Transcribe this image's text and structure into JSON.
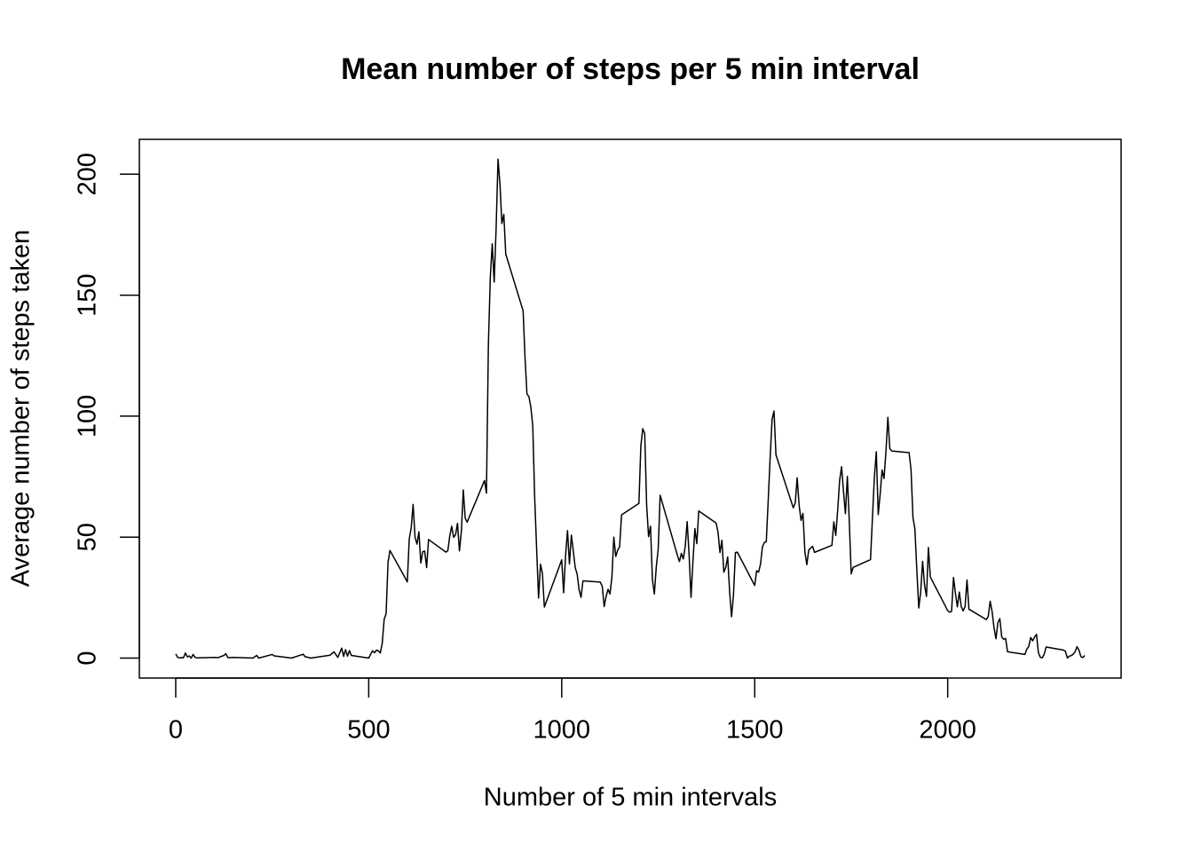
{
  "chart_data": {
    "type": "line",
    "title": "Mean number of steps per 5 min interval",
    "xlabel": "Number of 5 min intervals",
    "ylabel": "Average number of steps taken",
    "color": "#000000",
    "xlim": [
      -94.2,
      2449.2
    ],
    "ylim": [
      -8.25,
      214.4
    ],
    "xticks": [
      0,
      500,
      1000,
      1500,
      2000
    ],
    "yticks": [
      0,
      50,
      100,
      150,
      200
    ],
    "x": [
      0,
      5,
      10,
      15,
      20,
      25,
      30,
      35,
      40,
      45,
      50,
      55,
      100,
      110,
      125,
      130,
      135,
      150,
      200,
      210,
      215,
      250,
      255,
      300,
      330,
      335,
      350,
      400,
      410,
      420,
      430,
      435,
      440,
      445,
      450,
      455,
      500,
      505,
      510,
      515,
      520,
      525,
      530,
      535,
      540,
      545,
      550,
      555,
      600,
      605,
      610,
      615,
      620,
      625,
      630,
      635,
      640,
      645,
      650,
      655,
      700,
      705,
      710,
      715,
      720,
      725,
      730,
      735,
      740,
      745,
      750,
      755,
      800,
      805,
      810,
      815,
      820,
      825,
      830,
      835,
      840,
      845,
      850,
      855,
      900,
      905,
      910,
      915,
      920,
      925,
      930,
      935,
      940,
      945,
      950,
      955,
      1000,
      1005,
      1010,
      1015,
      1020,
      1025,
      1030,
      1035,
      1040,
      1045,
      1050,
      1055,
      1100,
      1105,
      1110,
      1115,
      1120,
      1125,
      1130,
      1135,
      1140,
      1145,
      1150,
      1155,
      1200,
      1205,
      1210,
      1215,
      1220,
      1225,
      1230,
      1235,
      1240,
      1245,
      1250,
      1255,
      1300,
      1305,
      1310,
      1315,
      1320,
      1325,
      1330,
      1335,
      1340,
      1345,
      1350,
      1355,
      1400,
      1405,
      1410,
      1415,
      1420,
      1425,
      1430,
      1435,
      1440,
      1445,
      1450,
      1455,
      1500,
      1505,
      1510,
      1515,
      1520,
      1525,
      1530,
      1535,
      1540,
      1545,
      1550,
      1555,
      1600,
      1605,
      1610,
      1615,
      1620,
      1625,
      1630,
      1635,
      1640,
      1645,
      1650,
      1655,
      1700,
      1705,
      1710,
      1715,
      1720,
      1725,
      1730,
      1735,
      1740,
      1745,
      1750,
      1755,
      1800,
      1805,
      1810,
      1815,
      1820,
      1825,
      1830,
      1835,
      1840,
      1845,
      1850,
      1855,
      1900,
      1905,
      1910,
      1915,
      1920,
      1925,
      1930,
      1935,
      1940,
      1945,
      1950,
      1955,
      2000,
      2005,
      2010,
      2015,
      2020,
      2025,
      2030,
      2035,
      2040,
      2045,
      2050,
      2055,
      2100,
      2105,
      2110,
      2115,
      2120,
      2125,
      2130,
      2135,
      2140,
      2145,
      2150,
      2155,
      2200,
      2205,
      2210,
      2215,
      2220,
      2225,
      2230,
      2235,
      2240,
      2245,
      2250,
      2255,
      2300,
      2305,
      2310,
      2315,
      2320,
      2325,
      2330,
      2335,
      2340,
      2345,
      2350,
      2355
    ],
    "values": [
      1.7,
      0.3,
      0.1,
      0.2,
      0.1,
      2.1,
      0.5,
      0.9,
      0,
      1.5,
      0.3,
      0.1,
      0.3,
      0.2,
      1.1,
      1.8,
      0.2,
      0.3,
      0,
      1.1,
      0,
      1.5,
      0.9,
      0,
      1.6,
      0.6,
      0,
      1.2,
      2.6,
      0.3,
      4.1,
      0.7,
      3.5,
      0.8,
      3.1,
      1.1,
      0,
      1.6,
      3.0,
      2.2,
      3.3,
      3.0,
      2.1,
      6.1,
      16.0,
      18.3,
      39.5,
      44.5,
      31.5,
      49.3,
      53.8,
      63.5,
      50.0,
      47.1,
      52.2,
      39.3,
      44.0,
      44.2,
      37.4,
      49.0,
      43.8,
      44.4,
      50.5,
      54.5,
      49.9,
      51.0,
      55.7,
      44.3,
      52.3,
      69.5,
      57.8,
      56.2,
      73.4,
      68.2,
      129.4,
      157.5,
      171.2,
      155.4,
      177.3,
      206.2,
      195.9,
      179.6,
      183.4,
      167.0,
      143.5,
      124.0,
      109.1,
      108.1,
      103.7,
      96.0,
      66.2,
      45.2,
      24.8,
      38.8,
      35.0,
      21.1,
      40.6,
      27.0,
      42.4,
      52.7,
      38.9,
      50.8,
      44.3,
      37.4,
      34.7,
      28.3,
      25.1,
      31.9,
      31.4,
      29.7,
      21.3,
      25.5,
      28.4,
      26.5,
      33.4,
      50.0,
      42.0,
      44.6,
      46.0,
      59.2,
      63.9,
      87.7,
      94.8,
      92.8,
      63.4,
      50.2,
      54.5,
      32.4,
      26.5,
      37.7,
      45.1,
      67.3,
      42.3,
      39.9,
      43.3,
      41.0,
      46.2,
      56.4,
      42.8,
      25.1,
      40.0,
      53.5,
      47.3,
      60.8,
      55.8,
      52.0,
      43.6,
      48.7,
      35.5,
      37.5,
      41.8,
      27.5,
      17.1,
      26.1,
      43.6,
      43.8,
      30.0,
      36.1,
      35.5,
      38.8,
      46.0,
      47.8,
      48.1,
      65.3,
      82.9,
      98.7,
      102.1,
      84.0,
      62.1,
      64.1,
      74.5,
      63.2,
      56.9,
      59.8,
      43.9,
      38.6,
      44.7,
      45.5,
      46.2,
      43.7,
      46.6,
      56.3,
      50.7,
      61.2,
      73.4,
      79.1,
      68.9,
      59.7,
      75.1,
      56.5,
      34.8,
      37.5,
      40.7,
      58.0,
      74.7,
      85.3,
      59.3,
      67.8,
      77.7,
      74.2,
      85.3,
      99.5,
      86.6,
      85.6,
      84.9,
      77.8,
      58.0,
      53.4,
      36.3,
      20.7,
      27.4,
      40.0,
      30.2,
      25.5,
      45.7,
      33.5,
      19.6,
      19.0,
      19.3,
      33.3,
      26.8,
      21.2,
      27.3,
      21.3,
      19.5,
      21.3,
      32.3,
      20.2,
      15.9,
      17.2,
      23.5,
      19.2,
      12.5,
      8.0,
      14.7,
      16.3,
      8.7,
      7.8,
      8.1,
      2.6,
      1.5,
      3.7,
      4.8,
      8.5,
      7.1,
      8.7,
      9.8,
      2.2,
      0.3,
      0.1,
      1.6,
      4.6,
      3.3,
      2.8,
      0,
      0.8,
      1.0,
      1.6,
      2.6,
      4.7,
      3.3,
      0.6,
      0.2,
      1.1
    ]
  }
}
